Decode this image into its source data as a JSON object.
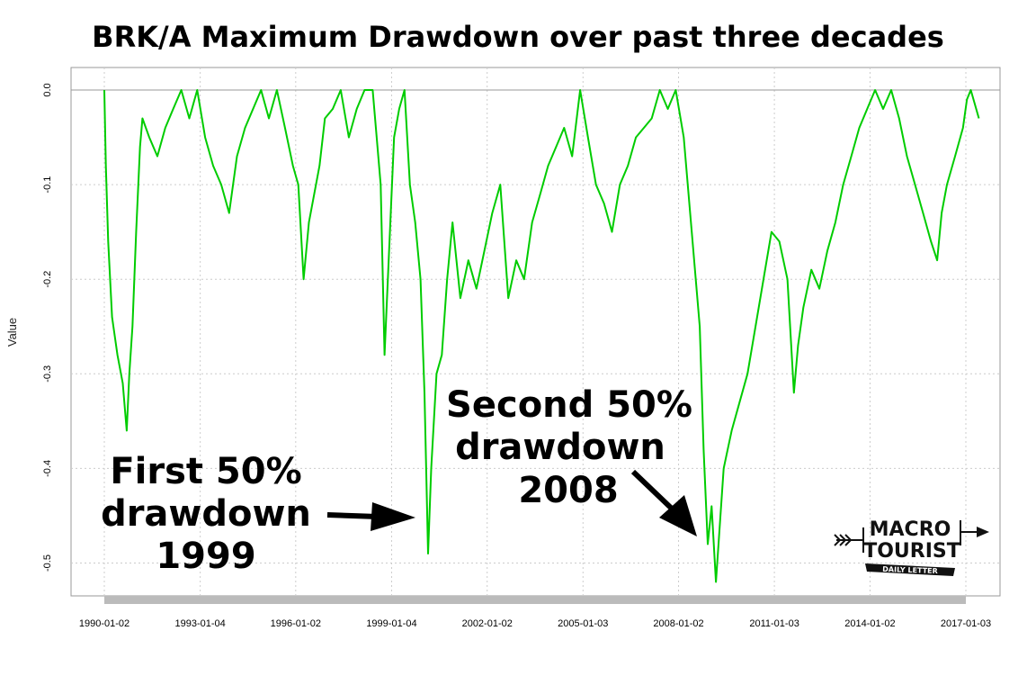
{
  "chart_data": {
    "type": "line",
    "title": "BRK/A Maximum Drawdown over past three decades",
    "ylabel": "Value",
    "xlabel": "",
    "ylim": [
      -0.54,
      0.0
    ],
    "xlim": [
      "1989-03-01",
      "2017-12-01"
    ],
    "y_ticks": [
      0.0,
      -0.1,
      -0.2,
      -0.3,
      -0.4,
      -0.5
    ],
    "y_tick_labels": [
      "0.0",
      "-0.1",
      "-0.2",
      "-0.3",
      "-0.4",
      "-0.5"
    ],
    "x_tick_labels": [
      "1990-01-02",
      "1993-01-04",
      "1996-01-02",
      "1999-01-04",
      "2002-01-02",
      "2005-01-03",
      "2008-01-02",
      "2011-01-03",
      "2014-01-02",
      "2017-01-03"
    ],
    "grid": true,
    "legend": "none",
    "line_color": "#00cc00",
    "series": [
      {
        "x": [
          "1990-01-02",
          "1990-01-20",
          "1990-02-15",
          "1990-04-01",
          "1990-06-01",
          "1990-08-01",
          "1990-09-15",
          "1990-10-15",
          "1990-11-20",
          "1991-01-01",
          "1991-02-15",
          "1991-03-15",
          "1991-06-01",
          "1991-09-01",
          "1991-12-01",
          "1992-03-01",
          "1992-06-01",
          "1992-09-01",
          "1992-12-01",
          "1993-03-01",
          "1993-06-01",
          "1993-09-01",
          "1993-12-01",
          "1994-03-01",
          "1994-06-01",
          "1994-09-01",
          "1994-12-01",
          "1995-03-01",
          "1995-06-01",
          "1995-09-01",
          "1995-12-01",
          "1996-02-01",
          "1996-04-01",
          "1996-06-01",
          "1996-08-01",
          "1996-10-01",
          "1996-12-01",
          "1997-03-01",
          "1997-06-01",
          "1997-09-01",
          "1997-12-01",
          "1998-03-01",
          "1998-06-01",
          "1998-09-01",
          "1998-10-15",
          "1998-12-01",
          "1999-02-01",
          "1999-04-01",
          "1999-06-01",
          "1999-08-01",
          "1999-10-01",
          "1999-12-01",
          "2000-01-15",
          "2000-02-25",
          "2000-04-01",
          "2000-06-01",
          "2000-08-01",
          "2000-10-01",
          "2000-12-01",
          "2001-03-01",
          "2001-06-01",
          "2001-09-01",
          "2001-12-01",
          "2002-03-01",
          "2002-06-01",
          "2002-09-01",
          "2002-12-01",
          "2003-03-01",
          "2003-06-01",
          "2003-09-01",
          "2003-12-01",
          "2004-03-01",
          "2004-06-01",
          "2004-09-01",
          "2004-12-01",
          "2005-03-01",
          "2005-06-01",
          "2005-09-01",
          "2005-12-01",
          "2006-03-01",
          "2006-06-01",
          "2006-09-01",
          "2006-12-01",
          "2007-03-01",
          "2007-06-01",
          "2007-09-01",
          "2007-12-01",
          "2008-03-01",
          "2008-06-01",
          "2008-09-01",
          "2008-10-15",
          "2008-12-01",
          "2009-01-15",
          "2009-03-05",
          "2009-06-01",
          "2009-09-01",
          "2009-12-01",
          "2010-03-01",
          "2010-06-01",
          "2010-09-01",
          "2010-12-01",
          "2011-03-01",
          "2011-06-01",
          "2011-08-15",
          "2011-10-01",
          "2011-12-01",
          "2012-03-01",
          "2012-06-01",
          "2012-09-01",
          "2012-12-01",
          "2013-03-01",
          "2013-06-01",
          "2013-09-01",
          "2013-12-01",
          "2014-03-01",
          "2014-06-01",
          "2014-09-01",
          "2014-12-01",
          "2015-03-01",
          "2015-06-01",
          "2015-09-01",
          "2015-12-01",
          "2016-02-10",
          "2016-04-01",
          "2016-06-01",
          "2016-09-01",
          "2016-12-01",
          "2017-01-15",
          "2017-03-01",
          "2017-06-01"
        ],
        "values": [
          0.0,
          -0.08,
          -0.16,
          -0.24,
          -0.28,
          -0.31,
          -0.36,
          -0.3,
          -0.25,
          -0.15,
          -0.06,
          -0.03,
          -0.05,
          -0.07,
          -0.04,
          -0.02,
          0.0,
          -0.03,
          0.0,
          -0.05,
          -0.08,
          -0.1,
          -0.13,
          -0.07,
          -0.04,
          -0.02,
          0.0,
          -0.03,
          0.0,
          -0.04,
          -0.08,
          -0.1,
          -0.2,
          -0.14,
          -0.11,
          -0.08,
          -0.03,
          -0.02,
          0.0,
          -0.05,
          -0.02,
          0.0,
          0.0,
          -0.1,
          -0.28,
          -0.18,
          -0.05,
          -0.02,
          0.0,
          -0.1,
          -0.14,
          -0.2,
          -0.32,
          -0.49,
          -0.4,
          -0.3,
          -0.28,
          -0.2,
          -0.14,
          -0.22,
          -0.18,
          -0.21,
          -0.17,
          -0.13,
          -0.1,
          -0.22,
          -0.18,
          -0.2,
          -0.14,
          -0.11,
          -0.08,
          -0.06,
          -0.04,
          -0.07,
          0.0,
          -0.05,
          -0.1,
          -0.12,
          -0.15,
          -0.1,
          -0.08,
          -0.05,
          -0.04,
          -0.03,
          0.0,
          -0.02,
          0.0,
          -0.05,
          -0.15,
          -0.25,
          -0.38,
          -0.48,
          -0.44,
          -0.52,
          -0.4,
          -0.36,
          -0.33,
          -0.3,
          -0.25,
          -0.2,
          -0.15,
          -0.16,
          -0.2,
          -0.32,
          -0.27,
          -0.23,
          -0.19,
          -0.21,
          -0.17,
          -0.14,
          -0.1,
          -0.07,
          -0.04,
          -0.02,
          0.0,
          -0.02,
          0.0,
          -0.03,
          -0.07,
          -0.1,
          -0.13,
          -0.16,
          -0.18,
          -0.13,
          -0.1,
          -0.07,
          -0.04,
          -0.01,
          0.0,
          -0.03
        ]
      }
    ],
    "annotations": [
      {
        "lines": [
          "First 50%",
          "drawdown",
          "1999"
        ]
      },
      {
        "lines": [
          "Second 50%",
          "drawdown",
          "2008"
        ]
      }
    ]
  },
  "logo": {
    "line1": "MACRO",
    "line2": "TOURIST",
    "tagline": "DAILY LETTER"
  }
}
